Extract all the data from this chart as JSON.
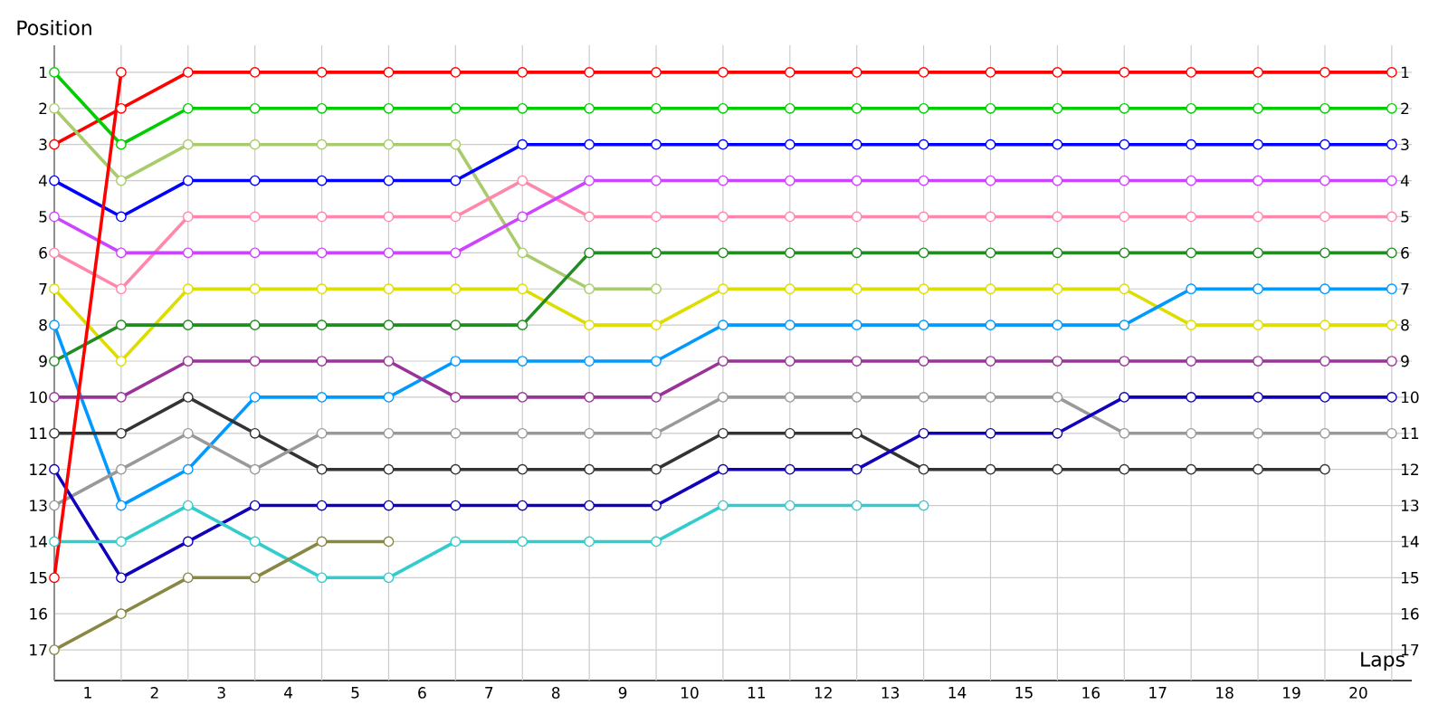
{
  "chart_data": {
    "type": "line",
    "xlabel": "Laps",
    "ylabel": "Position",
    "x": [
      0,
      1,
      2,
      3,
      4,
      5,
      6,
      7,
      8,
      9,
      10,
      11,
      12,
      13,
      14,
      15,
      16,
      17,
      18,
      19,
      20
    ],
    "xlim": [
      0,
      20.3
    ],
    "ylim": [
      17.85,
      0.25
    ],
    "xticks": [
      {
        "value": 0,
        "label": null
      },
      {
        "value": 1,
        "label": null
      },
      {
        "value": 2,
        "label": null
      },
      {
        "value": 3,
        "label": null
      },
      {
        "value": 4,
        "label": null
      },
      {
        "value": 5,
        "label": null
      },
      {
        "value": 6,
        "label": null
      },
      {
        "value": 7,
        "label": null
      },
      {
        "value": 8,
        "label": null
      },
      {
        "value": 9,
        "label": null
      },
      {
        "value": 10,
        "label": null
      },
      {
        "value": 11,
        "label": null
      },
      {
        "value": 12,
        "label": null
      },
      {
        "value": 13,
        "label": null
      },
      {
        "value": 14,
        "label": null
      },
      {
        "value": 15,
        "label": null
      },
      {
        "value": 16,
        "label": null
      },
      {
        "value": 17,
        "label": null
      },
      {
        "value": 18,
        "label": null
      },
      {
        "value": 19,
        "label": null
      },
      {
        "value": 20,
        "label": null
      },
      {
        "value": 0.5,
        "label": "1"
      },
      {
        "value": 1.5,
        "label": "2"
      },
      {
        "value": 2.5,
        "label": "3"
      },
      {
        "value": 3.5,
        "label": "4"
      },
      {
        "value": 4.5,
        "label": "5"
      },
      {
        "value": 5.5,
        "label": "6"
      },
      {
        "value": 6.5,
        "label": "7"
      },
      {
        "value": 7.5,
        "label": "8"
      },
      {
        "value": 8.5,
        "label": "9"
      },
      {
        "value": 9.5,
        "label": "10"
      },
      {
        "value": 10.5,
        "label": "11"
      },
      {
        "value": 11.5,
        "label": "12"
      },
      {
        "value": 12.5,
        "label": "13"
      },
      {
        "value": 13.5,
        "label": "14"
      },
      {
        "value": 14.5,
        "label": "15"
      },
      {
        "value": 15.5,
        "label": "16"
      },
      {
        "value": 16.5,
        "label": "17"
      },
      {
        "value": 17.5,
        "label": "18"
      },
      {
        "value": 18.5,
        "label": "19"
      },
      {
        "value": 19.5,
        "label": "20"
      }
    ],
    "yticks": [
      1,
      2,
      3,
      4,
      5,
      6,
      7,
      8,
      9,
      10,
      11,
      12,
      13,
      14,
      15,
      16,
      17
    ],
    "y2lim": [
      17.85,
      0.25
    ],
    "y2ticks": [
      1,
      2,
      3,
      4,
      5,
      6,
      7,
      8,
      9,
      10,
      11,
      12,
      13,
      14,
      15,
      16,
      17
    ],
    "grid": true,
    "marker": "circle",
    "line_style": "solid",
    "series": [
      {
        "color": "#ff0000",
        "values": [
          3,
          2,
          1,
          1,
          1,
          1,
          1,
          1,
          1,
          1,
          1,
          1,
          1,
          1,
          1,
          1,
          1,
          1,
          1,
          1,
          1
        ]
      },
      {
        "color": "#00cc00",
        "values": [
          1,
          3,
          2,
          2,
          2,
          2,
          2,
          2,
          2,
          2,
          2,
          2,
          2,
          2,
          2,
          2,
          2,
          2,
          2,
          2,
          2
        ]
      },
      {
        "color": "#a8cc6c",
        "values": [
          2,
          4,
          3,
          3,
          3,
          3,
          3,
          6,
          7,
          7,
          null,
          null,
          null,
          null,
          null,
          null,
          null,
          null,
          null,
          null,
          null
        ]
      },
      {
        "color": "#0000ff",
        "values": [
          4,
          5,
          4,
          4,
          4,
          4,
          4,
          3,
          3,
          3,
          3,
          3,
          3,
          3,
          3,
          3,
          3,
          3,
          3,
          3,
          3
        ]
      },
      {
        "color": "#ff88aa",
        "values": [
          6,
          7,
          5,
          5,
          5,
          5,
          5,
          4,
          5,
          5,
          5,
          5,
          5,
          5,
          5,
          5,
          5,
          5,
          5,
          5,
          5
        ]
      },
      {
        "color": "#cc44ff",
        "values": [
          5,
          6,
          6,
          6,
          6,
          6,
          6,
          5,
          4,
          4,
          4,
          4,
          4,
          4,
          4,
          4,
          4,
          4,
          4,
          4,
          4
        ]
      },
      {
        "color": "#dddd00",
        "values": [
          7,
          9,
          7,
          7,
          7,
          7,
          7,
          7,
          8,
          8,
          7,
          7,
          7,
          7,
          7,
          7,
          7,
          8,
          8,
          8,
          8
        ]
      },
      {
        "color": "#228b22",
        "values": [
          9,
          8,
          8,
          8,
          8,
          8,
          8,
          8,
          6,
          6,
          6,
          6,
          6,
          6,
          6,
          6,
          6,
          6,
          6,
          6,
          6
        ]
      },
      {
        "color": "#0099ff",
        "values": [
          8,
          13,
          12,
          10,
          10,
          10,
          9,
          9,
          9,
          9,
          8,
          8,
          8,
          8,
          8,
          8,
          8,
          7,
          7,
          7,
          7
        ]
      },
      {
        "color": "#993399",
        "values": [
          10,
          10,
          9,
          9,
          9,
          9,
          10,
          10,
          10,
          10,
          9,
          9,
          9,
          9,
          9,
          9,
          9,
          9,
          9,
          9,
          9
        ]
      },
      {
        "color": "#333333",
        "values": [
          11,
          11,
          10,
          11,
          12,
          12,
          12,
          12,
          12,
          12,
          11,
          11,
          11,
          12,
          12,
          12,
          12,
          12,
          12,
          12,
          null
        ]
      },
      {
        "color": "#999999",
        "values": [
          13,
          12,
          11,
          12,
          11,
          11,
          11,
          11,
          11,
          11,
          10,
          10,
          10,
          10,
          10,
          10,
          11,
          11,
          11,
          11,
          11
        ]
      },
      {
        "color": "#1100bb",
        "values": [
          12,
          15,
          14,
          13,
          13,
          13,
          13,
          13,
          13,
          13,
          12,
          12,
          12,
          11,
          11,
          11,
          10,
          10,
          10,
          10,
          10
        ]
      },
      {
        "color": "#33cccc",
        "values": [
          14,
          14,
          13,
          14,
          15,
          15,
          14,
          14,
          14,
          14,
          13,
          13,
          13,
          13,
          null,
          null,
          null,
          null,
          null,
          null,
          null
        ]
      },
      {
        "color": "#888844",
        "values": [
          17,
          16,
          15,
          15,
          14,
          14,
          null,
          null,
          null,
          null,
          null,
          null,
          null,
          null,
          null,
          null,
          null,
          null,
          null,
          null,
          null
        ]
      },
      {
        "color": "#ff0000",
        "values": [
          15,
          1,
          null,
          null,
          null,
          null,
          null,
          null,
          null,
          null,
          null,
          null,
          null,
          null,
          null,
          null,
          null,
          null,
          null,
          null,
          null
        ]
      }
    ]
  }
}
